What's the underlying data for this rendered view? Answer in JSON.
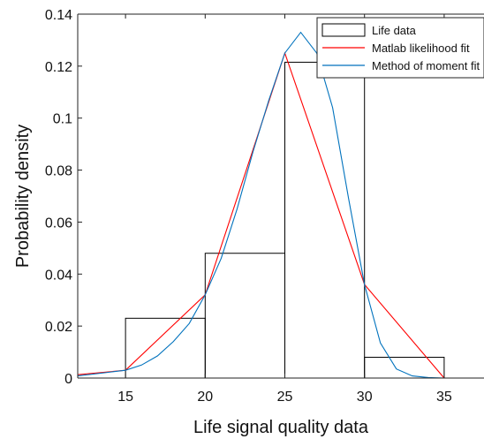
{
  "chart_data": {
    "type": "bar",
    "xlabel": "Life signal quality data",
    "ylabel": "Probability density",
    "xlim": [
      12,
      37.5
    ],
    "ylim": [
      0,
      0.14
    ],
    "x_ticks": [
      15,
      20,
      25,
      30,
      35
    ],
    "y_ticks": [
      0,
      0.02,
      0.04,
      0.06,
      0.08,
      0.1,
      0.12,
      0.14
    ],
    "y_tick_labels": [
      "0",
      "0.02",
      "0.04",
      "0.06",
      "0.08",
      "0.1",
      "0.12",
      "0.14"
    ],
    "grid": false,
    "legend_position": "top-right",
    "histogram": {
      "name": "Life data",
      "color": "#000000",
      "bins": [
        {
          "x0": 15,
          "x1": 20,
          "value": 0.023
        },
        {
          "x0": 20,
          "x1": 25,
          "value": 0.048
        },
        {
          "x0": 25,
          "x1": 30,
          "value": 0.1215
        },
        {
          "x0": 30,
          "x1": 35,
          "value": 0.008
        }
      ]
    },
    "series": [
      {
        "name": "Matlab likelihood fit",
        "color": "#ff0000",
        "x": [
          12,
          15,
          20,
          25,
          30,
          35
        ],
        "y": [
          0.0013,
          0.003,
          0.032,
          0.125,
          0.036,
          0.0
        ]
      },
      {
        "name": "Method of moment fit",
        "color": "#0072bd",
        "x": [
          12,
          15,
          16,
          17,
          18,
          19,
          20,
          21,
          22,
          23,
          24,
          25,
          26,
          27,
          28,
          29,
          30,
          31,
          32,
          33,
          34,
          35,
          36,
          37.5
        ],
        "y": [
          0.0008,
          0.003,
          0.005,
          0.0085,
          0.014,
          0.021,
          0.032,
          0.046,
          0.065,
          0.087,
          0.107,
          0.125,
          0.133,
          0.125,
          0.104,
          0.069,
          0.036,
          0.0135,
          0.0035,
          0.0008,
          0.0002,
          0.0,
          0.0,
          0.0
        ]
      }
    ]
  }
}
